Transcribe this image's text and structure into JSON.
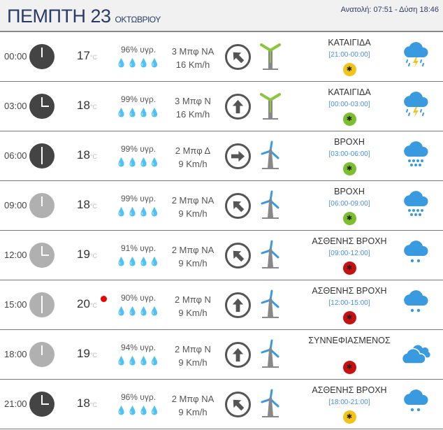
{
  "header": {
    "day": "ΠΕΜΠΤΗ 23",
    "month": "ΟΚΤΩΒΡΙΟΥ",
    "sun": "Ανατολή: 07:51  - Δύση 18:46"
  },
  "temp_unit": "°C",
  "colors": {
    "accent": "#2a3c66",
    "drop": "#3a9ae0",
    "clock_dark": "#444444",
    "clock_light": "#b0b0b0",
    "mosquito_yellow": "#f0c419",
    "mosquito_green": "#7cbf2e",
    "mosquito_red": "#c81010"
  },
  "rows": [
    {
      "time": "00:00",
      "clock": "dark",
      "temp": "17",
      "hum": "96% υγρ.",
      "beaufort": "3 Μπφ ΝΑ",
      "speed": "16 Km/h",
      "arrow_deg": -45,
      "turbine": "strong",
      "condition": "ΚΑΤΑΙΓΙΔΑ",
      "range": "[21:00-00:00]",
      "mosquito": "yellow",
      "icon": "thunderstorm-icon",
      "current": false
    },
    {
      "time": "03:00",
      "clock": "dark",
      "temp": "18",
      "hum": "99% υγρ.",
      "beaufort": "3 Μπφ Ν",
      "speed": "16 Km/h",
      "arrow_deg": 0,
      "turbine": "strong",
      "condition": "ΚΑΤΑΙΓΙΔΑ",
      "range": "[00:00-03:00]",
      "mosquito": "green",
      "icon": "thunderstorm-icon",
      "current": false
    },
    {
      "time": "06:00",
      "clock": "dark",
      "temp": "18",
      "hum": "99% υγρ.",
      "beaufort": "2 Μπφ Δ",
      "speed": "9 Km/h",
      "arrow_deg": 90,
      "turbine": "light",
      "condition": "ΒΡΟΧΗ",
      "range": "[03:00-06:00]",
      "mosquito": "green",
      "icon": "rain-icon",
      "current": false
    },
    {
      "time": "09:00",
      "clock": "light",
      "temp": "18",
      "hum": "99% υγρ.",
      "beaufort": "2 Μπφ ΝΑ",
      "speed": "9 Km/h",
      "arrow_deg": -45,
      "turbine": "light",
      "condition": "ΒΡΟΧΗ",
      "range": "[06:00-09:00]",
      "mosquito": "green",
      "icon": "rain-icon",
      "current": false
    },
    {
      "time": "12:00",
      "clock": "light",
      "temp": "19",
      "hum": "91% υγρ.",
      "beaufort": "2 Μπφ ΝΑ",
      "speed": "9 Km/h",
      "arrow_deg": -45,
      "turbine": "light",
      "condition": "ΑΣΘΕΝΗΣ ΒΡΟΧΗ",
      "range": "[09:00-12:00]",
      "mosquito": "red",
      "icon": "light-rain-icon",
      "current": false
    },
    {
      "time": "15:00",
      "clock": "light",
      "temp": "20",
      "hum": "90% υγρ.",
      "beaufort": "2 Μπφ Ν",
      "speed": "9 Km/h",
      "arrow_deg": 0,
      "turbine": "light",
      "condition": "ΑΣΘΕΝΗΣ ΒΡΟΧΗ",
      "range": "[12:00-15:00]",
      "mosquito": "red",
      "icon": "light-rain-icon",
      "current": true
    },
    {
      "time": "18:00",
      "clock": "light",
      "temp": "19",
      "hum": "94% υγρ.",
      "beaufort": "2 Μπφ Ν",
      "speed": "9 Km/h",
      "arrow_deg": 0,
      "turbine": "light",
      "condition": "ΣΥΝΝΕΦΙΑΣΜΕΝΟΣ",
      "range": "",
      "mosquito": "red",
      "icon": "cloudy-icon",
      "current": false
    },
    {
      "time": "21:00",
      "clock": "dark",
      "temp": "18",
      "hum": "96% υγρ.",
      "beaufort": "2 Μπφ ΝΑ",
      "speed": "9 Km/h",
      "arrow_deg": -45,
      "turbine": "light",
      "condition": "ΑΣΘΕΝΗΣ ΒΡΟΧΗ",
      "range": "[18:00-21:00]",
      "mosquito": "yellow",
      "icon": "light-rain-icon",
      "current": false
    }
  ]
}
